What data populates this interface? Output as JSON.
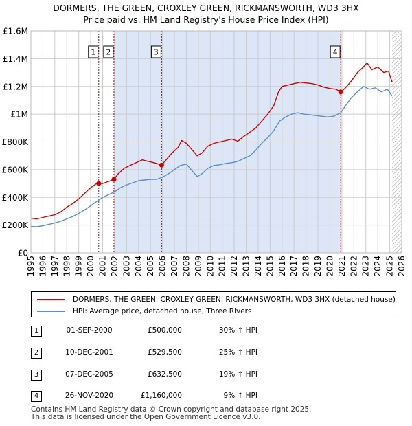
{
  "title_line1": "DORMERS, THE GREEN, CROXLEY GREEN, RICKMANSWORTH, WD3 3HX",
  "title_line2": "Price paid vs. HM Land Registry's House Price Index (HPI)",
  "colors": {
    "property": "#cc0000",
    "hpi": "#5b8ec9",
    "shade": "#dce6f7",
    "grid": "#cccccc",
    "vline": "#cc0000",
    "hatch": "#999999"
  },
  "legend": {
    "property": "DORMERS, THE GREEN, CROXLEY GREEN, RICKMANSWORTH, WD3 3HX (detached house)",
    "hpi": "HPI: Average price, detached house, Three Rivers"
  },
  "transactions": [
    {
      "num": "1",
      "date": "01-SEP-2000",
      "price": "£500,000",
      "hpi_change": "30% ↑ HPI"
    },
    {
      "num": "2",
      "date": "10-DEC-2001",
      "price": "£529,500",
      "hpi_change": "25% ↑ HPI"
    },
    {
      "num": "3",
      "date": "07-DEC-2005",
      "price": "£632,500",
      "hpi_change": "19% ↑ HPI"
    },
    {
      "num": "4",
      "date": "26-NOV-2020",
      "price": "£1,160,000",
      "hpi_change": "9% ↑ HPI"
    }
  ],
  "footer_line1": "Contains HM Land Registry data © Crown copyright and database right 2025.",
  "footer_line2": "This data is licensed under the Open Government Licence v3.0.",
  "chart_data": {
    "type": "line",
    "title": "DORMERS, THE GREEN, CROXLEY GREEN, RICKMANSWORTH, WD3 3HX",
    "subtitle": "Price paid vs. HM Land Registry's House Price Index (HPI)",
    "xlabel": "",
    "ylabel": "",
    "xlim": [
      1995,
      2026
    ],
    "ylim": [
      0,
      1600000
    ],
    "x_ticks": [
      "1995",
      "1996",
      "1997",
      "1998",
      "1999",
      "2000",
      "2001",
      "2002",
      "2003",
      "2004",
      "2005",
      "2006",
      "2007",
      "2008",
      "2009",
      "2010",
      "2011",
      "2012",
      "2013",
      "2014",
      "2015",
      "2016",
      "2017",
      "2018",
      "2019",
      "2020",
      "2021",
      "2022",
      "2023",
      "2024",
      "2025",
      "2026"
    ],
    "y_ticks": [
      {
        "value": 0,
        "label": "£0"
      },
      {
        "value": 200000,
        "label": "£200K"
      },
      {
        "value": 400000,
        "label": "£400K"
      },
      {
        "value": 600000,
        "label": "£600K"
      },
      {
        "value": 800000,
        "label": "£800K"
      },
      {
        "value": 1000000,
        "label": "£1M"
      },
      {
        "value": 1200000,
        "label": "£1.2M"
      },
      {
        "value": 1400000,
        "label": "£1.4M"
      },
      {
        "value": 1600000,
        "label": "£1.6M"
      }
    ],
    "grid": true,
    "shaded_region": [
      2001.94,
      2020.9
    ],
    "future_hatch_from": 2025.2,
    "markers": [
      {
        "label": "1",
        "x": 2000.67,
        "y": 500000
      },
      {
        "label": "2",
        "x": 2001.94,
        "y": 529500
      },
      {
        "label": "3",
        "x": 2005.93,
        "y": 632500
      },
      {
        "label": "4",
        "x": 2020.9,
        "y": 1160000
      }
    ],
    "series": [
      {
        "name": "DORMERS, THE GREEN, CROXLEY GREEN, RICKMANSWORTH, WD3 3HX (detached house)",
        "x": [
          1995,
          1995.5,
          1996,
          1996.5,
          1997,
          1997.5,
          1998,
          1998.5,
          1999,
          1999.5,
          2000,
          2000.5,
          2000.67,
          2001,
          2001.5,
          2001.94,
          2002.3,
          2002.8,
          2003.3,
          2003.8,
          2004.3,
          2004.8,
          2005.3,
          2005.93,
          2006.3,
          2006.8,
          2007.3,
          2007.6,
          2008,
          2008.5,
          2008.9,
          2009.3,
          2009.8,
          2010.3,
          2010.8,
          2011.3,
          2011.8,
          2012.3,
          2012.8,
          2013.3,
          2013.8,
          2014.3,
          2014.8,
          2015.3,
          2015.7,
          2016,
          2016.5,
          2017,
          2017.5,
          2018,
          2018.5,
          2019,
          2019.5,
          2020,
          2020.5,
          2020.9,
          2021.3,
          2021.8,
          2022.3,
          2022.8,
          2023.1,
          2023.5,
          2024,
          2024.5,
          2024.9,
          2025.2
        ],
        "values": [
          250000,
          245000,
          255000,
          265000,
          275000,
          295000,
          330000,
          355000,
          390000,
          430000,
          470000,
          500000,
          500000,
          500000,
          515000,
          529500,
          570000,
          610000,
          630000,
          650000,
          670000,
          660000,
          650000,
          632500,
          670000,
          720000,
          760000,
          810000,
          790000,
          740000,
          700000,
          720000,
          770000,
          790000,
          800000,
          810000,
          820000,
          805000,
          840000,
          870000,
          900000,
          950000,
          1000000,
          1060000,
          1160000,
          1200000,
          1210000,
          1220000,
          1230000,
          1225000,
          1220000,
          1210000,
          1195000,
          1185000,
          1180000,
          1160000,
          1190000,
          1240000,
          1300000,
          1340000,
          1370000,
          1320000,
          1340000,
          1300000,
          1310000,
          1230000
        ]
      },
      {
        "name": "HPI: Average price, detached house, Three Rivers",
        "x": [
          1995,
          1995.5,
          1996,
          1996.5,
          1997,
          1997.5,
          1998,
          1998.5,
          1999,
          1999.5,
          2000,
          2000.5,
          2001,
          2001.5,
          2002,
          2002.5,
          2003,
          2003.5,
          2004,
          2004.5,
          2005,
          2005.5,
          2006,
          2006.5,
          2007,
          2007.5,
          2008,
          2008.5,
          2008.9,
          2009.3,
          2009.8,
          2010.3,
          2010.8,
          2011.3,
          2011.8,
          2012.3,
          2012.8,
          2013.3,
          2013.8,
          2014.3,
          2014.8,
          2015.3,
          2015.8,
          2016.3,
          2016.8,
          2017.3,
          2017.8,
          2018.3,
          2018.8,
          2019.3,
          2019.8,
          2020.3,
          2020.9,
          2021.3,
          2021.8,
          2022.3,
          2022.8,
          2023.3,
          2023.8,
          2024.3,
          2024.8,
          2025.2
        ],
        "values": [
          190000,
          188000,
          195000,
          205000,
          215000,
          228000,
          245000,
          262000,
          285000,
          310000,
          340000,
          370000,
          400000,
          420000,
          440000,
          470000,
          490000,
          505000,
          520000,
          525000,
          530000,
          530000,
          545000,
          570000,
          600000,
          630000,
          640000,
          590000,
          550000,
          570000,
          610000,
          630000,
          635000,
          645000,
          650000,
          660000,
          680000,
          700000,
          740000,
          790000,
          830000,
          880000,
          950000,
          980000,
          1000000,
          1010000,
          1000000,
          995000,
          990000,
          985000,
          980000,
          985000,
          1010000,
          1060000,
          1120000,
          1160000,
          1200000,
          1180000,
          1190000,
          1160000,
          1180000,
          1130000
        ]
      }
    ]
  }
}
